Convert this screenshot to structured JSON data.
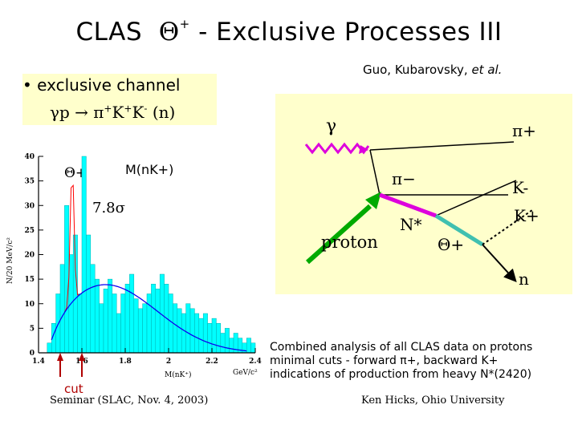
{
  "title": {
    "prefix": "CLAS",
    "theta": "Θ",
    "theta_sup": "+",
    "rest": " - Exclusive Processes III"
  },
  "authors": {
    "names": "Guo, Kubarovsky, ",
    "etal": "et al."
  },
  "channel": {
    "bullet": "• exclusive channel",
    "reaction_main": "γp → π",
    "sup1": "+",
    "k": "K",
    "sup2": "+",
    "k2": "K",
    "sup3": "-",
    "tail": " (n)"
  },
  "plot": {
    "theta_label": "Θ+",
    "mass_label": "M(nK+)",
    "significance": "7.8σ",
    "y_axis_label": "N/20 MeV/c²",
    "x_axis_label": "M(nK⁺)",
    "x_unit": "GeV/c²",
    "cut_label": "cut"
  },
  "chart_data": {
    "type": "bar",
    "xlim": [
      1.4,
      2.4
    ],
    "ylim": [
      0,
      40
    ],
    "xticks": [
      "1.4",
      "1.6",
      "1.8",
      "2",
      "2.2",
      "2.4"
    ],
    "yticks": [
      "0",
      "5",
      "10",
      "15",
      "20",
      "25",
      "30",
      "35",
      "40"
    ],
    "bin_width": 0.02,
    "bin_start": 1.44,
    "values": [
      2,
      6,
      12,
      18,
      30,
      20,
      24,
      12,
      40,
      24,
      18,
      15,
      10,
      13,
      15,
      12,
      8,
      12,
      14,
      16,
      11,
      9,
      10,
      12,
      14,
      13,
      16,
      14,
      12,
      10,
      9,
      8,
      10,
      9,
      8,
      7,
      8,
      6,
      7,
      6,
      4,
      5,
      3,
      4,
      3,
      2,
      3,
      2
    ],
    "background_fit_label": "",
    "cut_positions": [
      1.5,
      1.6
    ],
    "peak_position": 1.555
  },
  "diagram": {
    "gamma": "γ",
    "pi_plus": "π+",
    "pi_minus": "π−",
    "k_minus": "K-",
    "k_plus": "K+",
    "nstar": "N*",
    "proton": "proton",
    "theta_plus": "Θ+",
    "neutron": "n"
  },
  "notes": [
    "Combined analysis of all CLAS data on protons",
    "minimal cuts - forward π+, backward K+",
    "indications of production from heavy N*(2420)"
  ],
  "footer": {
    "left": "Seminar (SLAC, Nov. 4, 2003)",
    "right": "Ken Hicks, Ohio University"
  },
  "colors": {
    "bars": "#00ffff",
    "fit_peak": "#ff0000",
    "fit_bg": "#0000ff",
    "cut_arrow": "#b00000",
    "box": "#ffffcc",
    "green": "#00aa00",
    "magenta": "#dd00dd",
    "teal": "#40c0b0"
  }
}
